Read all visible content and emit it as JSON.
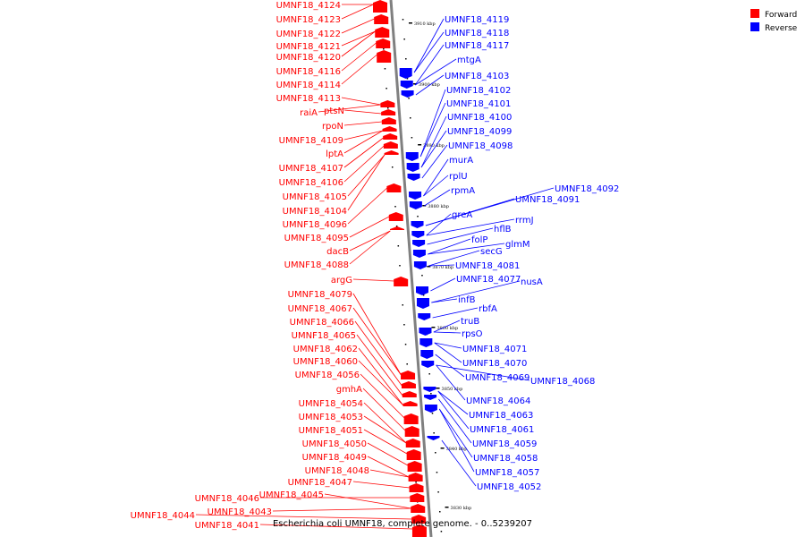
{
  "caption": "Escherichia coli UMNF18, complete genome. - 0..5239207",
  "legend": [
    {
      "label": "Forward",
      "color": "#ff0000"
    },
    {
      "label": "Reverse",
      "color": "#0000ff"
    }
  ],
  "colors": {
    "forward": "#ff0000",
    "reverse": "#0000ff",
    "backbone": "#808080"
  },
  "ticks": [
    "3910 kbp",
    "3900 kbp",
    "3890 kbp",
    "3880 kbp",
    "3870 kbp",
    "3860 kbp",
    "3850 kbp",
    "3840 kbp",
    "3830 kbp"
  ],
  "forward_labels": [
    "UMNF18_4124",
    "UMNF18_4123",
    "UMNF18_4122",
    "UMNF18_4121",
    "UMNF18_4120",
    "UMNF18_4116",
    "UMNF18_4114",
    "UMNF18_4113",
    "raiA",
    "ptsN",
    "rpoN",
    "UMNF18_4109",
    "lptA",
    "UMNF18_4107",
    "UMNF18_4106",
    "UMNF18_4105",
    "UMNF18_4104",
    "UMNF18_4096",
    "UMNF18_4095",
    "dacB",
    "UMNF18_4088",
    "argG",
    "UMNF18_4079",
    "UMNF18_4067",
    "UMNF18_4066",
    "UMNF18_4065",
    "UMNF18_4062",
    "UMNF18_4060",
    "UMNF18_4056",
    "gmhA",
    "UMNF18_4054",
    "UMNF18_4053",
    "UMNF18_4051",
    "UMNF18_4050",
    "UMNF18_4049",
    "UMNF18_4048",
    "UMNF18_4047",
    "UMNF18_4046",
    "UMNF18_4045",
    "UMNF18_4043",
    "UMNF18_4044",
    "UMNF18_4041"
  ],
  "reverse_labels": [
    "UMNF18_4119",
    "UMNF18_4118",
    "UMNF18_4117",
    "mtgA",
    "UMNF18_4103",
    "UMNF18_4102",
    "UMNF18_4101",
    "UMNF18_4100",
    "UMNF18_4099",
    "UMNF18_4098",
    "murA",
    "rplU",
    "rpmA",
    "UMNF18_4092",
    "UMNF18_4091",
    "greA",
    "rrmJ",
    "hflB",
    "folP",
    "glmM",
    "secG",
    "UMNF18_4081",
    "UMNF18_4077",
    "nusA",
    "infB",
    "rbfA",
    "truB",
    "rpsO",
    "UMNF18_4071",
    "UMNF18_4070",
    "UMNF18_4069",
    "UMNF18_4068",
    "UMNF18_4064",
    "UMNF18_4063",
    "UMNF18_4061",
    "UMNF18_4059",
    "UMNF18_4058",
    "UMNF18_4057",
    "UMNF18_4052"
  ]
}
